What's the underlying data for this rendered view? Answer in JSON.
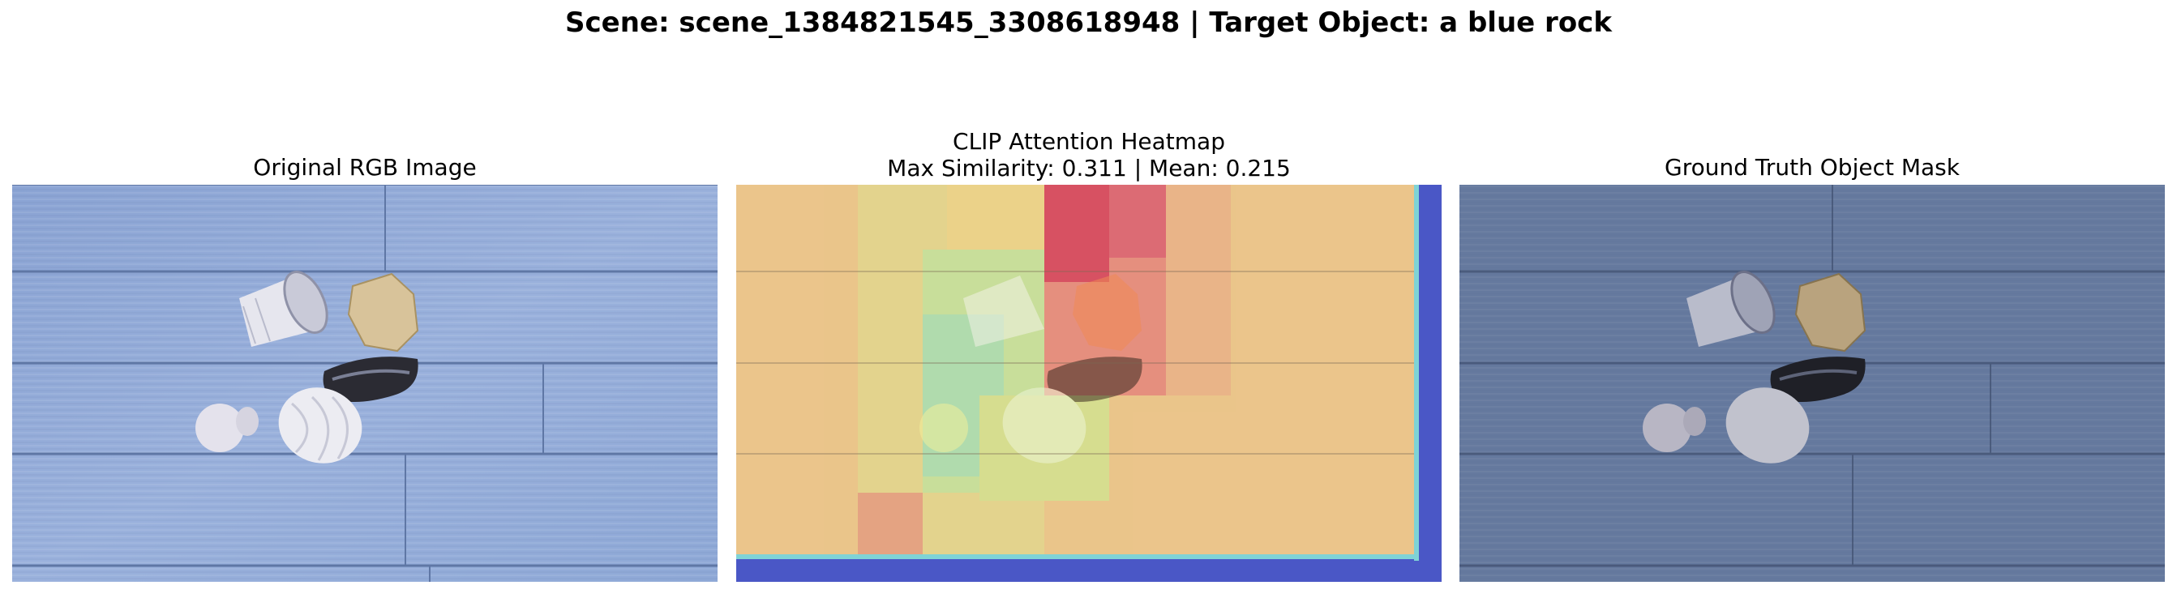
{
  "figure": {
    "title": "Scene: scene_1384821545_3308618948 | Target Object: a blue rock"
  },
  "panels": [
    {
      "title": "Original RGB Image"
    },
    {
      "title_line1": "CLIP Attention Heatmap",
      "title_line2": "Max Similarity: 0.311 | Mean: 0.215"
    },
    {
      "title": "Ground Truth Object Mask"
    }
  ],
  "colors": {
    "floor": "#8ea8d6",
    "floor_dark": "#5a6f96",
    "heat_low": "#f1c983",
    "heat_high": "#d9475c",
    "heat_mid": "#bfe09a",
    "heat_border": "#4a57c6"
  }
}
